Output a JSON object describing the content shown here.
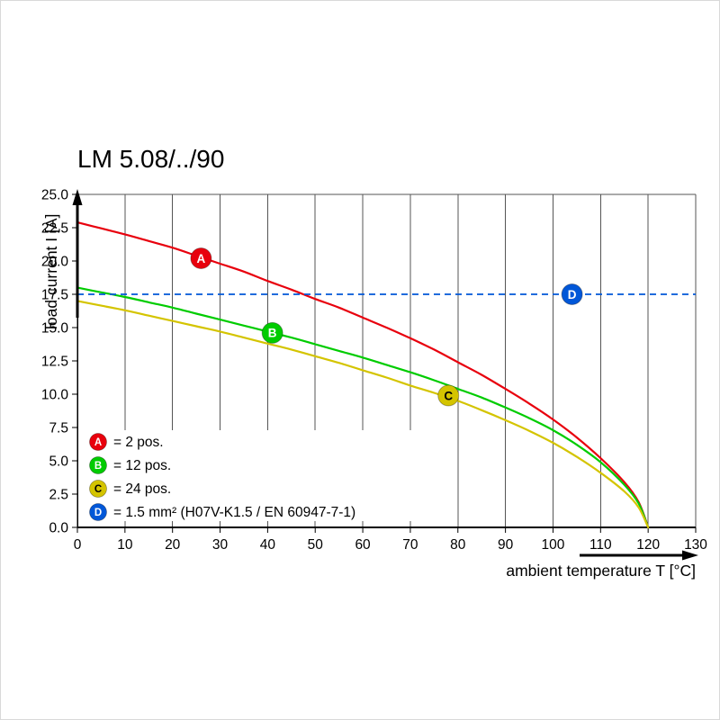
{
  "page": {
    "background": "#ffffff",
    "border_color": "#d9d9d9"
  },
  "chart_data": {
    "type": "line",
    "title": "LM 5.08/../90",
    "xlabel": "ambient temperature T [°C]",
    "ylabel": "load current I [A]",
    "xlim": [
      0,
      130
    ],
    "ylim": [
      0,
      25
    ],
    "xticks": [
      0,
      10,
      20,
      30,
      40,
      50,
      60,
      70,
      80,
      90,
      100,
      110,
      120,
      130
    ],
    "yticks": [
      0,
      2.5,
      5,
      7.5,
      10,
      12.5,
      15,
      17.5,
      20,
      22.5,
      25
    ],
    "grid": "vertical-only",
    "legend_position": "lower-left",
    "series": [
      {
        "id": "A",
        "legend_label": "= 2 pos.",
        "color": "#e8000d",
        "letter_color": "#ffffff",
        "line_style": "solid",
        "marker": {
          "x": 26,
          "y": 20.2
        },
        "points": [
          [
            0,
            22.9
          ],
          [
            5,
            22.45
          ],
          [
            10,
            22.0
          ],
          [
            15,
            21.5
          ],
          [
            20,
            21.0
          ],
          [
            25,
            20.4
          ],
          [
            30,
            19.8
          ],
          [
            35,
            19.2
          ],
          [
            40,
            18.5
          ],
          [
            45,
            17.85
          ],
          [
            50,
            17.15
          ],
          [
            55,
            16.5
          ],
          [
            60,
            15.75
          ],
          [
            65,
            15.0
          ],
          [
            70,
            14.2
          ],
          [
            75,
            13.35
          ],
          [
            80,
            12.4
          ],
          [
            85,
            11.45
          ],
          [
            90,
            10.4
          ],
          [
            95,
            9.3
          ],
          [
            100,
            8.1
          ],
          [
            105,
            6.75
          ],
          [
            110,
            5.2
          ],
          [
            115,
            3.4
          ],
          [
            118,
            1.9
          ],
          [
            120,
            0
          ]
        ]
      },
      {
        "id": "B",
        "legend_label": "= 12 pos.",
        "color": "#00cc00",
        "letter_color": "#ffffff",
        "line_style": "solid",
        "marker": {
          "x": 41,
          "y": 14.6
        },
        "points": [
          [
            0,
            18.0
          ],
          [
            5,
            17.65
          ],
          [
            10,
            17.3
          ],
          [
            15,
            16.9
          ],
          [
            20,
            16.5
          ],
          [
            25,
            16.05
          ],
          [
            30,
            15.6
          ],
          [
            35,
            15.15
          ],
          [
            40,
            14.7
          ],
          [
            45,
            14.25
          ],
          [
            50,
            13.75
          ],
          [
            55,
            13.25
          ],
          [
            60,
            12.75
          ],
          [
            65,
            12.2
          ],
          [
            70,
            11.65
          ],
          [
            75,
            11.05
          ],
          [
            80,
            10.4
          ],
          [
            85,
            9.75
          ],
          [
            90,
            9.0
          ],
          [
            95,
            8.2
          ],
          [
            100,
            7.3
          ],
          [
            105,
            6.2
          ],
          [
            110,
            4.9
          ],
          [
            115,
            3.2
          ],
          [
            118,
            1.8
          ],
          [
            120,
            0
          ]
        ]
      },
      {
        "id": "C",
        "legend_label": "= 24 pos.",
        "color": "#d4c400",
        "letter_color": "#000000",
        "line_style": "solid",
        "marker": {
          "x": 78,
          "y": 9.9
        },
        "points": [
          [
            0,
            17.0
          ],
          [
            5,
            16.65
          ],
          [
            10,
            16.3
          ],
          [
            15,
            15.9
          ],
          [
            20,
            15.5
          ],
          [
            25,
            15.1
          ],
          [
            30,
            14.7
          ],
          [
            35,
            14.25
          ],
          [
            40,
            13.8
          ],
          [
            45,
            13.35
          ],
          [
            50,
            12.85
          ],
          [
            55,
            12.35
          ],
          [
            60,
            11.8
          ],
          [
            65,
            11.25
          ],
          [
            70,
            10.65
          ],
          [
            75,
            10.1
          ],
          [
            80,
            9.5
          ],
          [
            85,
            8.8
          ],
          [
            90,
            8.05
          ],
          [
            95,
            7.25
          ],
          [
            100,
            6.35
          ],
          [
            105,
            5.3
          ],
          [
            110,
            4.1
          ],
          [
            115,
            2.7
          ],
          [
            118,
            1.5
          ],
          [
            120,
            0
          ]
        ]
      },
      {
        "id": "D",
        "legend_label": "= 1.5 mm² (H07V-K1.5 / EN 60947-7-1)",
        "color": "#0057d8",
        "letter_color": "#ffffff",
        "line_style": "dashed",
        "marker": {
          "x": 104,
          "y": 17.5
        },
        "points": [
          [
            0,
            17.5
          ],
          [
            130,
            17.5
          ]
        ]
      }
    ]
  }
}
